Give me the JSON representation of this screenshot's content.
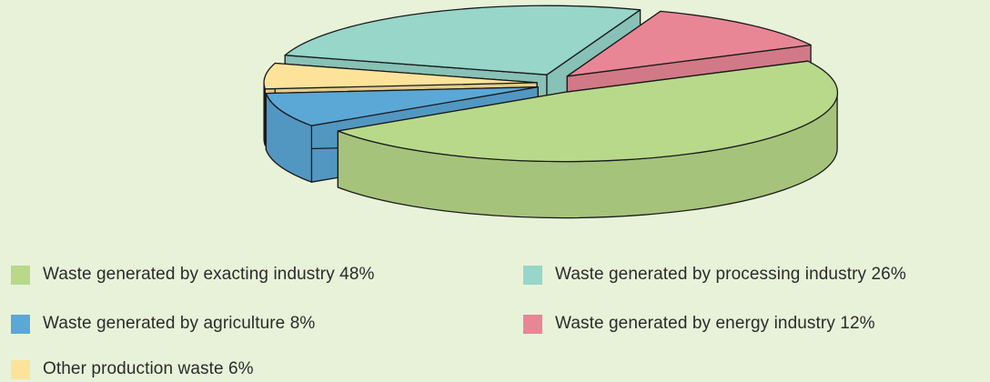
{
  "chart_data": {
    "type": "pie",
    "three_d": true,
    "exploded": true,
    "title": "",
    "slices": [
      {
        "label": "Waste generated by exacting industry 48%",
        "value": 48,
        "color": "#b8d98a"
      },
      {
        "label": "Waste generated by processing industry 26%",
        "value": 26,
        "color": "#97d6c9"
      },
      {
        "label": "Waste generated by agriculture 8%",
        "value": 8,
        "color": "#5ba8d6"
      },
      {
        "label": "Waste generated by energy industry 12%",
        "value": 12,
        "color": "#e88696"
      },
      {
        "label": "Other production waste 6%",
        "value": 6,
        "color": "#fde39a"
      }
    ],
    "legend_position": "bottom"
  }
}
